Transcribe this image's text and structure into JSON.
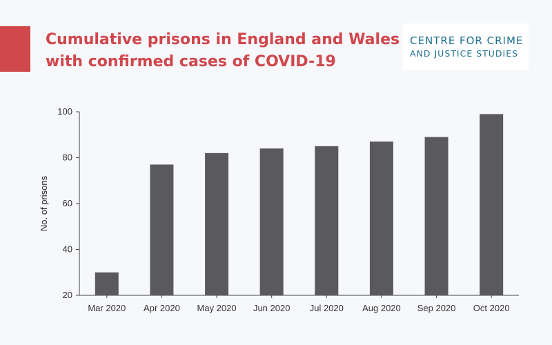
{
  "title_lines": [
    "Cumulative prisons in England and Wales",
    "with confirmed cases of COVID-19"
  ],
  "logo_lines": [
    "CENTRE FOR CRIME",
    "AND JUSTICE STUDIES"
  ],
  "colors": {
    "accent": "#d0474c",
    "bar": "#5a5a5c",
    "logo_text": "#1f6f8f",
    "background": "#f7f8fc"
  },
  "chart_data": {
    "type": "bar",
    "categories": [
      "Mar 2020",
      "Apr 2020",
      "May 2020",
      "Jun 2020",
      "Jul 2020",
      "Aug 2020",
      "Sep 2020",
      "Oct 2020"
    ],
    "values": [
      30,
      77,
      82,
      84,
      85,
      87,
      89,
      99
    ],
    "ylabel": "No. of prisons",
    "ylim": [
      20,
      100
    ],
    "yticks": [
      20,
      40,
      60,
      80,
      100
    ],
    "grid": false
  }
}
